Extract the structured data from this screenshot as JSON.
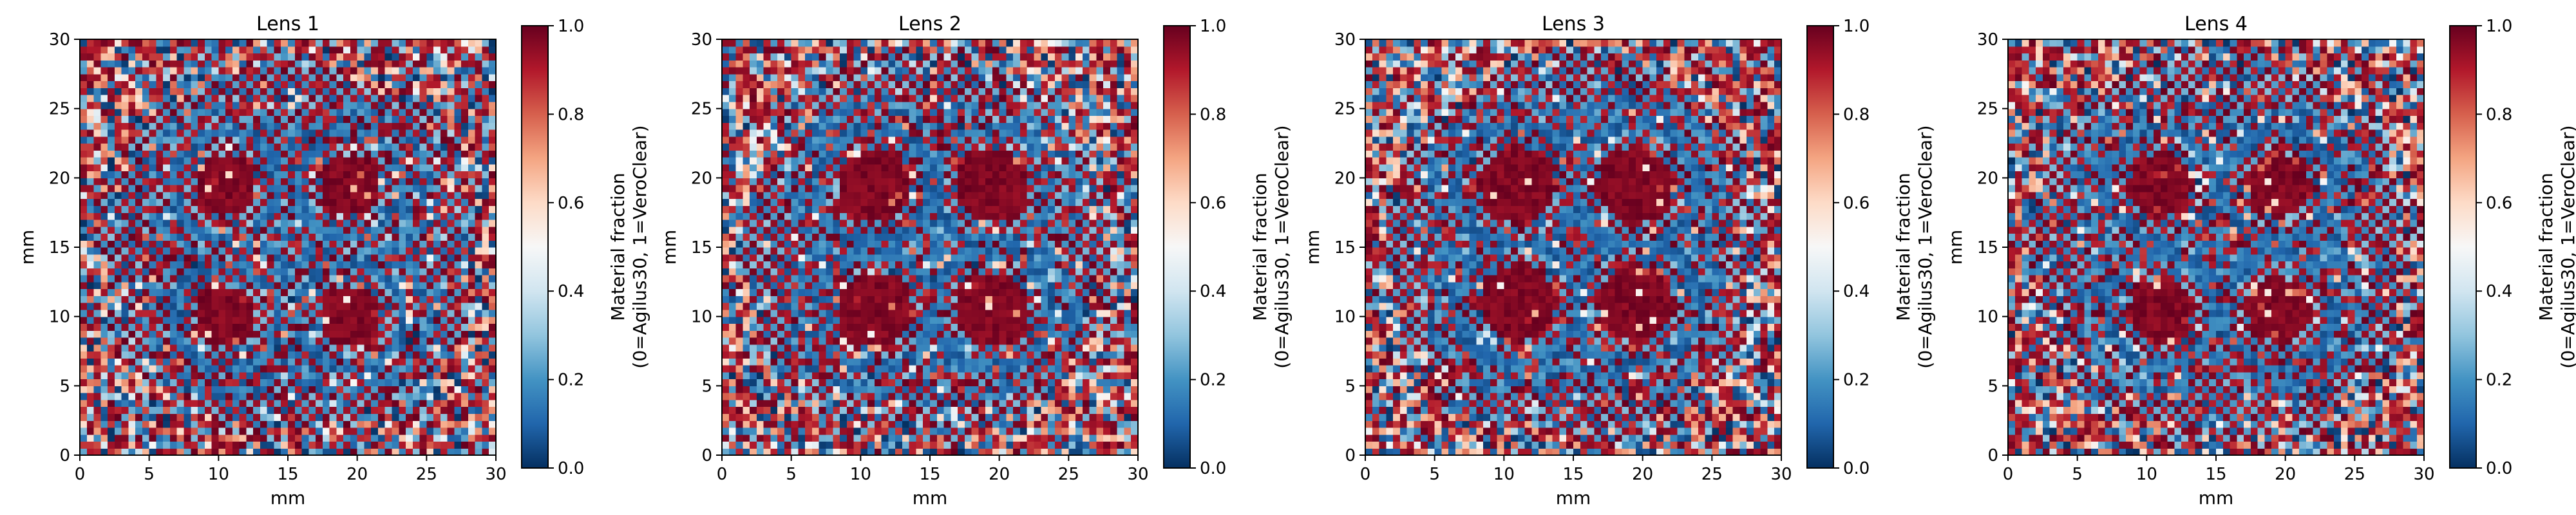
{
  "chart_data": [
    {
      "type": "heatmap",
      "title": "Lens 1",
      "xlabel": "mm",
      "ylabel": "mm",
      "xlim": [
        0,
        30
      ],
      "ylim": [
        0,
        30
      ],
      "xticks": [
        0,
        5,
        10,
        15,
        20,
        25,
        30
      ],
      "yticks": [
        0,
        5,
        10,
        15,
        20,
        25,
        30
      ],
      "grid": false,
      "colorbar": {
        "label_line1": "Material fraction",
        "label_line2": "(0=Agilus30, 1=VeroClear)",
        "ticks": [
          "0.0",
          "0.2",
          "0.4",
          "0.6",
          "0.8",
          "1.0"
        ],
        "range": [
          0,
          1
        ],
        "colormap": "RdBu_r"
      },
      "pattern": {
        "grid_cells": 60,
        "lens_centers_mm": [
          [
            10.5,
            19.5
          ],
          [
            19.5,
            19.5
          ],
          [
            10.5,
            10.0
          ],
          [
            19.5,
            10.0
          ]
        ],
        "core_radius_mm": 2.2,
        "ring_radius_mm": 3.2,
        "ring_width_mm": 0.8,
        "outer_boundary_radius_mm": 13.5,
        "seed": 11
      }
    },
    {
      "type": "heatmap",
      "title": "Lens 2",
      "xlabel": "mm",
      "ylabel": "mm",
      "xlim": [
        0,
        30
      ],
      "ylim": [
        0,
        30
      ],
      "xticks": [
        0,
        5,
        10,
        15,
        20,
        25,
        30
      ],
      "yticks": [
        0,
        5,
        10,
        15,
        20,
        25,
        30
      ],
      "grid": false,
      "colorbar": {
        "label_line1": "Material fraction",
        "label_line2": "(0=Agilus30, 1=VeroClear)",
        "ticks": [
          "0.0",
          "0.2",
          "0.4",
          "0.6",
          "0.8",
          "1.0"
        ],
        "range": [
          0,
          1
        ],
        "colormap": "RdBu_r"
      },
      "pattern": {
        "grid_cells": 60,
        "lens_centers_mm": [
          [
            11,
            19.5
          ],
          [
            19.5,
            19.5
          ],
          [
            11,
            10.5
          ],
          [
            19.5,
            10.5
          ]
        ],
        "core_radius_mm": 2.6,
        "ring_radius_mm": 3.6,
        "ring_width_mm": 0.9,
        "outer_boundary_radius_mm": 13.8,
        "seed": 23
      }
    },
    {
      "type": "heatmap",
      "title": "Lens 3",
      "xlabel": "mm",
      "ylabel": "mm",
      "xlim": [
        0,
        30
      ],
      "ylim": [
        0,
        30
      ],
      "xticks": [
        0,
        5,
        10,
        15,
        20,
        25,
        30
      ],
      "yticks": [
        0,
        5,
        10,
        15,
        20,
        25,
        30
      ],
      "grid": false,
      "colorbar": {
        "label_line1": "Material fraction",
        "label_line2": "(0=Agilus30, 1=VeroClear)",
        "ticks": [
          "0.0",
          "0.2",
          "0.4",
          "0.6",
          "0.8",
          "1.0"
        ],
        "range": [
          0,
          1
        ],
        "colormap": "RdBu_r"
      },
      "pattern": {
        "grid_cells": 60,
        "lens_centers_mm": [
          [
            11,
            19.5
          ],
          [
            19.5,
            19.5
          ],
          [
            11,
            11
          ],
          [
            19.5,
            11
          ]
        ],
        "core_radius_mm": 2.8,
        "ring_radius_mm": 3.9,
        "ring_width_mm": 1.0,
        "outer_boundary_radius_mm": 14.0,
        "seed": 37
      }
    },
    {
      "type": "heatmap",
      "title": "Lens 4",
      "xlabel": "mm",
      "ylabel": "mm",
      "xlim": [
        0,
        30
      ],
      "ylim": [
        0,
        30
      ],
      "xticks": [
        0,
        5,
        10,
        15,
        20,
        25,
        30
      ],
      "yticks": [
        0,
        5,
        10,
        15,
        20,
        25,
        30
      ],
      "grid": false,
      "colorbar": {
        "label_line1": "Material fraction",
        "label_line2": "(0=Agilus30, 1=VeroClear)",
        "ticks": [
          "0.0",
          "0.2",
          "0.4",
          "0.6",
          "0.8",
          "1.0"
        ],
        "range": [
          0,
          1
        ],
        "colormap": "RdBu_r"
      },
      "pattern": {
        "grid_cells": 60,
        "lens_centers_mm": [
          [
            11,
            19.5
          ],
          [
            19.5,
            19.5
          ],
          [
            11,
            10.5
          ],
          [
            19.5,
            10.5
          ]
        ],
        "core_radius_mm": 2.3,
        "ring_radius_mm": 3.4,
        "ring_width_mm": 0.9,
        "outer_boundary_radius_mm": 14.2,
        "seed": 53
      }
    }
  ]
}
